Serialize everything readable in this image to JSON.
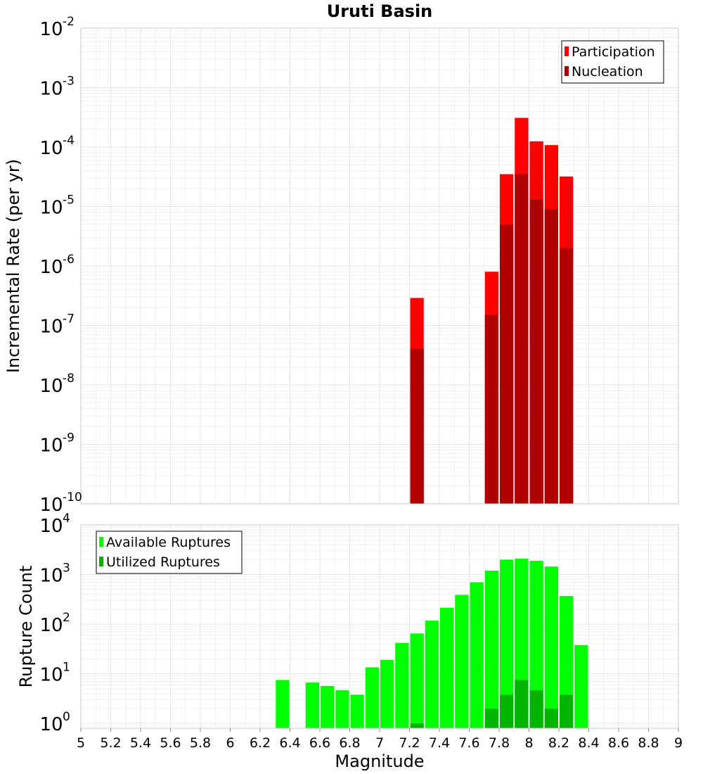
{
  "chart_data": [
    {
      "type": "bar",
      "title": "Uruti Basin",
      "ylabel": "Incremental Rate (per yr)",
      "xlabel": "",
      "x_axis_scale": "linear",
      "xlim": [
        5,
        9
      ],
      "y_scale": "log",
      "ylim": [
        1e-10,
        0.01
      ],
      "y_tick_exponents": [
        "-2",
        "-3",
        "-4",
        "-5",
        "-6",
        "-7",
        "-8",
        "-9",
        "-10"
      ],
      "y_tick_base": "10",
      "bar_width": 0.1,
      "grid": true,
      "legend_position": "top-right",
      "series": [
        {
          "name": "Participation",
          "color": "#ff0000",
          "x": [
            7.25,
            7.75,
            7.85,
            7.95,
            8.05,
            8.15,
            8.25
          ],
          "values": [
            2.9e-07,
            8e-07,
            3.5e-05,
            0.00031,
            0.000125,
            0.000108,
            3.2e-05
          ]
        },
        {
          "name": "Nucleation",
          "color": "#b00000",
          "x": [
            7.25,
            7.75,
            7.85,
            7.95,
            8.05,
            8.15,
            8.25
          ],
          "values": [
            4e-08,
            1.5e-07,
            5e-06,
            3.5e-05,
            1.3e-05,
            9e-06,
            2e-06
          ]
        }
      ]
    },
    {
      "type": "bar",
      "title": "",
      "ylabel": "Rupture Count",
      "xlabel": "Magnitude",
      "x_axis_scale": "linear",
      "xlim": [
        5,
        9
      ],
      "x_ticks": [
        "5",
        "5.2",
        "5.4",
        "5.6",
        "5.8",
        "6",
        "6.2",
        "6.4",
        "6.6",
        "6.8",
        "7",
        "7.2",
        "7.4",
        "7.6",
        "7.8",
        "8",
        "8.2",
        "8.4",
        "8.6",
        "8.8",
        "9"
      ],
      "y_scale": "log",
      "ylim": [
        0.8,
        10000
      ],
      "y_tick_exponents": [
        "4",
        "3",
        "2",
        "1",
        "0"
      ],
      "y_tick_base": "10",
      "bar_width": 0.1,
      "grid": true,
      "legend_position": "top-left",
      "series": [
        {
          "name": "Available Ruptures",
          "color": "#00ff00",
          "x": [
            6.35,
            6.55,
            6.65,
            6.75,
            6.85,
            6.95,
            7.05,
            7.15,
            7.25,
            7.35,
            7.45,
            7.55,
            7.65,
            7.75,
            7.85,
            7.95,
            8.05,
            8.15,
            8.25,
            8.35
          ],
          "values": [
            7.5,
            6.7,
            5.7,
            4.7,
            3.8,
            13.5,
            19,
            42,
            65,
            118,
            215,
            390,
            700,
            1200,
            2000,
            2100,
            1900,
            1450,
            370,
            38
          ]
        },
        {
          "name": "Utilized Ruptures",
          "color": "#00b400",
          "x": [
            7.25,
            7.75,
            7.85,
            7.95,
            8.05,
            8.15,
            8.25
          ],
          "values": [
            1,
            2,
            3.8,
            7.5,
            4.7,
            2,
            3.8
          ]
        }
      ]
    }
  ]
}
